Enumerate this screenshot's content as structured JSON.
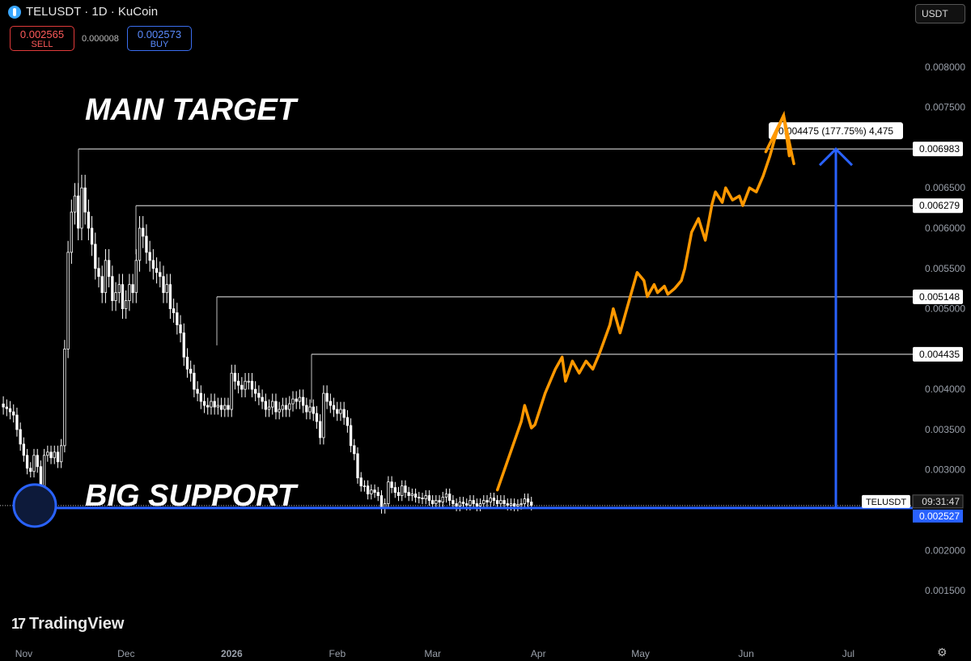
{
  "header": {
    "title": "TELUSDT · 1D · KuCoin",
    "currency": "USDT"
  },
  "quote": {
    "sell_price": "0.002565",
    "sell_label": "SELL",
    "spread": "0.000008",
    "buy_price": "0.002573",
    "buy_label": "BUY"
  },
  "brand": {
    "name": "TradingView"
  },
  "colors": {
    "accent_blue": "#2962ff",
    "arrow_orange": "#ff9800",
    "level_line": "#bfbfbf",
    "up": "#ffffff",
    "down": "#ffffff"
  },
  "chart_data": {
    "type": "candlestick",
    "ylim": [
      0.0013,
      0.0083
    ],
    "y_ticks": [
      "0.008000",
      "0.007500",
      "0.006500",
      "0.006000",
      "0.005500",
      "0.005000",
      "0.004000",
      "0.003500",
      "0.003000",
      "0.002000",
      "0.001500"
    ],
    "x_ticks": [
      "Nov",
      "Dec",
      "2026",
      "Feb",
      "Mar",
      "Apr",
      "May",
      "Jun",
      "Jul"
    ],
    "x_tick_dates": [
      "2025-11-01",
      "2025-12-01",
      "2026-01-01",
      "2026-02-01",
      "2026-03-01",
      "2026-04-01",
      "2026-05-01",
      "2026-06-01",
      "2026-07-01"
    ],
    "start_date": "2025-10-25",
    "end_date": "2026-07-18",
    "candles_close": [
      0.00378,
      0.00376,
      0.00372,
      0.00368,
      0.0035,
      0.00332,
      0.00318,
      0.00302,
      0.00298,
      0.00318,
      0.00304,
      0.00275,
      0.00318,
      0.00322,
      0.00315,
      0.00322,
      0.0031,
      0.0033,
      0.0045,
      0.0057,
      0.0062,
      0.0064,
      0.006,
      0.0065,
      0.0062,
      0.006,
      0.0058,
      0.0055,
      0.0054,
      0.0052,
      0.0056,
      0.0054,
      0.0051,
      0.0052,
      0.0053,
      0.005,
      0.0051,
      0.0053,
      0.0052,
      0.0056,
      0.006,
      0.0059,
      0.0057,
      0.0056,
      0.0055,
      0.00545,
      0.0054,
      0.0052,
      0.0053,
      0.005,
      0.00495,
      0.0048,
      0.0047,
      0.0044,
      0.00425,
      0.0042,
      0.004,
      0.00395,
      0.00385,
      0.0038,
      0.00378,
      0.00385,
      0.00378,
      0.0038,
      0.00375,
      0.0038,
      0.00375,
      0.0042,
      0.0041,
      0.00405,
      0.004,
      0.0041,
      0.0041,
      0.004,
      0.00395,
      0.0039,
      0.00385,
      0.00375,
      0.00378,
      0.00385,
      0.00372,
      0.00375,
      0.0038,
      0.00375,
      0.00382,
      0.00388,
      0.00385,
      0.0039,
      0.0038,
      0.00372,
      0.00378,
      0.0037,
      0.0036,
      0.0034,
      0.00395,
      0.00385,
      0.0038,
      0.00375,
      0.0037,
      0.00375,
      0.00365,
      0.00355,
      0.0033,
      0.0032,
      0.0029,
      0.0028,
      0.0028,
      0.0027,
      0.00275,
      0.00272,
      0.00268,
      0.00252,
      0.00258,
      0.00285,
      0.00278,
      0.00272,
      0.00268,
      0.0028,
      0.00272,
      0.00268,
      0.0027,
      0.00266,
      0.00265,
      0.00264,
      0.00268,
      0.00262,
      0.00258,
      0.00262,
      0.0026,
      0.00266,
      0.0027,
      0.00262,
      0.00258,
      0.00255,
      0.0026,
      0.00258,
      0.00256,
      0.00262,
      0.00258,
      0.00255,
      0.00258,
      0.00262,
      0.0026,
      0.00265,
      0.00262,
      0.00258,
      0.00262,
      0.00258,
      0.00256,
      0.00258,
      0.00255,
      0.00257,
      0.00258,
      0.00264,
      0.0026,
      0.00256
    ],
    "levels": [
      0.006983,
      0.006279,
      0.005148,
      0.004435
    ],
    "level_labels": [
      "0.006983",
      "0.006279",
      "0.005148",
      "0.004435"
    ],
    "support": 0.002527,
    "support_label": "0.002527",
    "price_tag_symbol": "TELUSDT",
    "price_tag_time": "09:31:47",
    "measure_label": "0.004475 (177.75%) 4,475",
    "annotations": {
      "target_text": "MAIN TARGET",
      "support_text": "BIG SUPPORT"
    },
    "projection_path": [
      [
        "2026-03-20",
        0.00275
      ],
      [
        "2026-03-27",
        0.0036
      ],
      [
        "2026-03-28",
        0.0038
      ],
      [
        "2026-03-30",
        0.00352
      ],
      [
        "2026-03-31",
        0.00356
      ],
      [
        "2026-04-03",
        0.00395
      ],
      [
        "2026-04-06",
        0.00425
      ],
      [
        "2026-04-08",
        0.0044
      ],
      [
        "2026-04-09",
        0.0041
      ],
      [
        "2026-04-11",
        0.00435
      ],
      [
        "2026-04-13",
        0.0042
      ],
      [
        "2026-04-15",
        0.00435
      ],
      [
        "2026-04-17",
        0.00425
      ],
      [
        "2026-04-19",
        0.00445
      ],
      [
        "2026-04-22",
        0.0048
      ],
      [
        "2026-04-23",
        0.005
      ],
      [
        "2026-04-24",
        0.00485
      ],
      [
        "2026-04-25",
        0.0047
      ],
      [
        "2026-04-28",
        0.00515
      ],
      [
        "2026-04-30",
        0.00545
      ],
      [
        "2026-05-02",
        0.00535
      ],
      [
        "2026-05-03",
        0.00515
      ],
      [
        "2026-05-05",
        0.0053
      ],
      [
        "2026-05-06",
        0.0052
      ],
      [
        "2026-05-08",
        0.00528
      ],
      [
        "2026-05-09",
        0.00518
      ],
      [
        "2026-05-11",
        0.00525
      ],
      [
        "2026-05-13",
        0.00535
      ],
      [
        "2026-05-14",
        0.0055
      ],
      [
        "2026-05-16",
        0.00595
      ],
      [
        "2026-05-18",
        0.00612
      ],
      [
        "2026-05-20",
        0.00585
      ],
      [
        "2026-05-22",
        0.0063
      ],
      [
        "2026-05-23",
        0.00645
      ],
      [
        "2026-05-25",
        0.00632
      ],
      [
        "2026-05-26",
        0.0065
      ],
      [
        "2026-05-28",
        0.00635
      ],
      [
        "2026-05-30",
        0.0064
      ],
      [
        "2026-05-31",
        0.00628
      ],
      [
        "2026-06-02",
        0.0065
      ],
      [
        "2026-06-04",
        0.00645
      ],
      [
        "2026-06-06",
        0.00665
      ],
      [
        "2026-06-08",
        0.0069
      ],
      [
        "2026-06-10",
        0.0072
      ],
      [
        "2026-06-12",
        0.0074
      ],
      [
        "2026-06-15",
        0.0068
      ]
    ]
  }
}
